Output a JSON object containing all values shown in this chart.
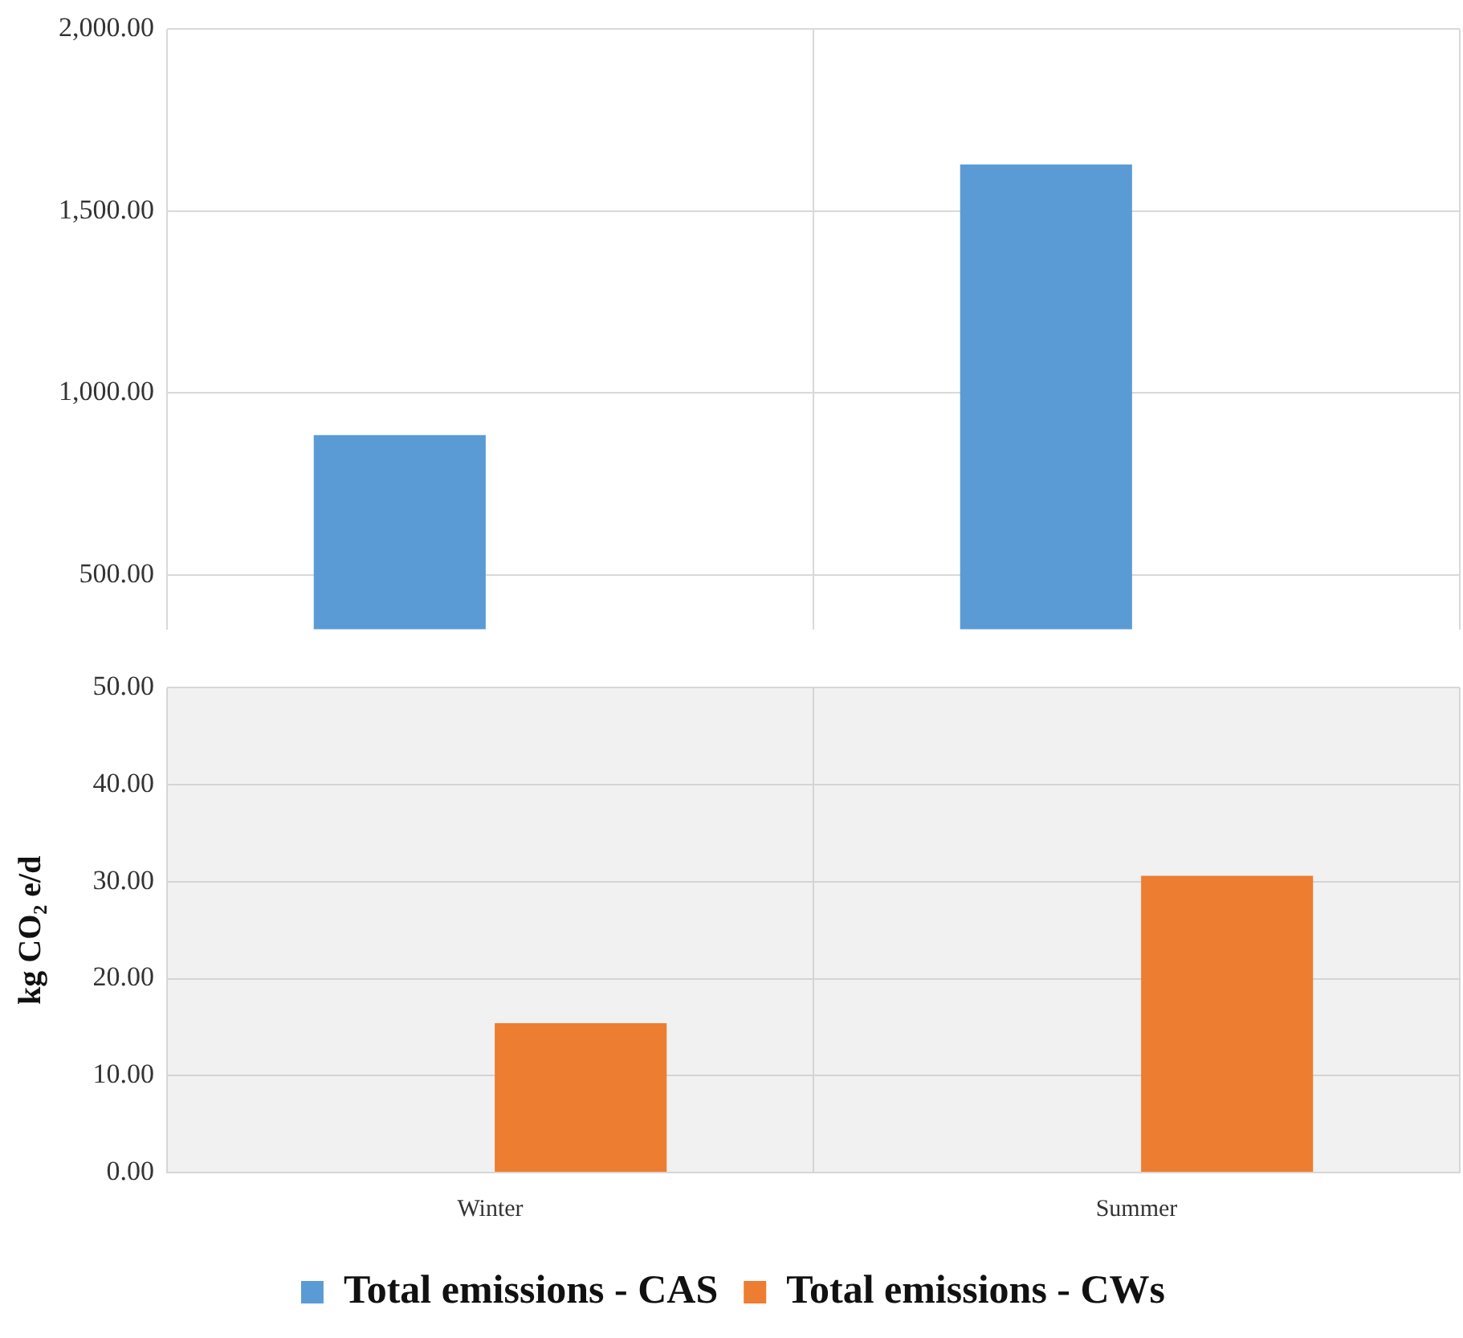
{
  "chart_data": [
    {
      "type": "bar",
      "categories": [
        null,
        null
      ],
      "series": [
        {
          "color": "#5b9bd5",
          "values": [
            884,
            1628
          ]
        },
        {
          "color": "#ed7d31",
          "values": [
            null,
            null
          ]
        }
      ],
      "ylim": [
        350,
        2000
      ],
      "yticks": [
        {
          "value": 500,
          "label": "500.00"
        },
        {
          "value": 1000,
          "label": "1,000.00"
        },
        {
          "value": 1500,
          "label": "1,500.00"
        },
        {
          "value": 2000,
          "label": "2,000.00"
        }
      ],
      "tick_labels": "y",
      "grid": true
    },
    {
      "type": "bar",
      "ylabel": "kg CO₂ e/d",
      "categories": [
        "Winter",
        "Summer"
      ],
      "series": [
        {
          "name": "Total emissions - CAS",
          "color": "#5b9bd5",
          "values": [
            null,
            null
          ]
        },
        {
          "name": "Total emissions - CWs",
          "color": "#ed7d31",
          "values": [
            15.4,
            30.6
          ]
        }
      ],
      "ylim": [
        0,
        50
      ],
      "yticks": [
        {
          "value": 0,
          "label": "0.00"
        },
        {
          "value": 10,
          "label": "10.00"
        },
        {
          "value": 20,
          "label": "20.00"
        },
        {
          "value": 30,
          "label": "30.00"
        },
        {
          "value": 40,
          "label": "40.00"
        },
        {
          "value": 50,
          "label": "50.00"
        }
      ],
      "grid": true,
      "legend": "bottom"
    }
  ]
}
